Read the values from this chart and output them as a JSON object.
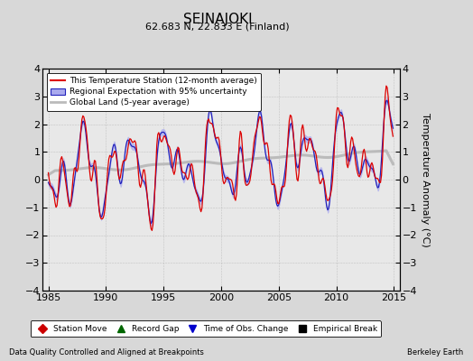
{
  "title": "SEINAJOKI",
  "subtitle": "62.683 N, 22.833 E (Finland)",
  "ylabel": "Temperature Anomaly (°C)",
  "xlabel_left": "Data Quality Controlled and Aligned at Breakpoints",
  "xlabel_right": "Berkeley Earth",
  "xlim": [
    1984.5,
    2015.5
  ],
  "ylim": [
    -4,
    4
  ],
  "yticks": [
    -4,
    -3,
    -2,
    -1,
    0,
    1,
    2,
    3,
    4
  ],
  "xticks": [
    1985,
    1990,
    1995,
    2000,
    2005,
    2010,
    2015
  ],
  "background_color": "#d8d8d8",
  "plot_bg_color": "#e8e8e8",
  "red_color": "#dd0000",
  "blue_color": "#2222bb",
  "blue_fill_color": "#aaaaee",
  "gray_color": "#bbbbbb",
  "legend_entries": [
    "This Temperature Station (12-month average)",
    "Regional Expectation with 95% uncertainty",
    "Global Land (5-year average)"
  ],
  "bottom_legend": [
    {
      "marker": "D",
      "color": "#cc0000",
      "label": "Station Move"
    },
    {
      "marker": "^",
      "color": "#006600",
      "label": "Record Gap"
    },
    {
      "marker": "v",
      "color": "#0000cc",
      "label": "Time of Obs. Change"
    },
    {
      "marker": "s",
      "color": "#000000",
      "label": "Empirical Break"
    }
  ]
}
